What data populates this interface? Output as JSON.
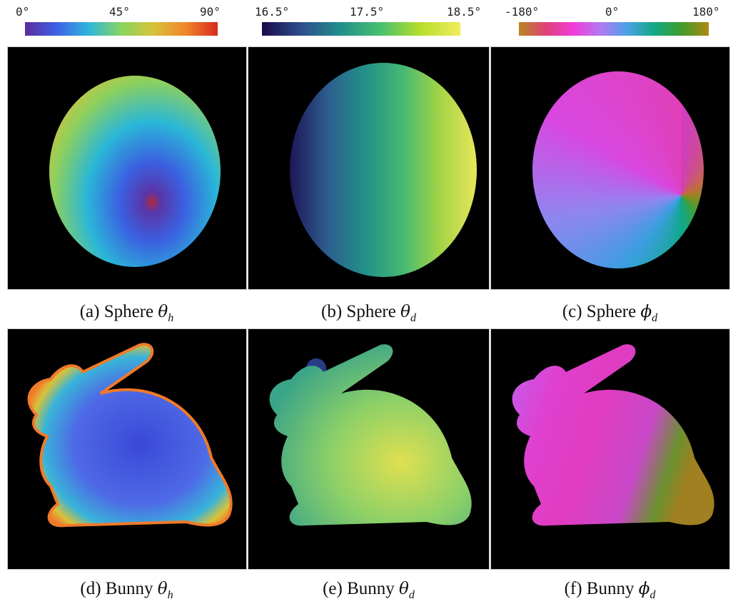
{
  "colorbars": [
    {
      "ticks": [
        "0°",
        "45°",
        "90°"
      ]
    },
    {
      "ticks": [
        "16.5°",
        "17.5°",
        "18.5°"
      ]
    },
    {
      "ticks": [
        "-180°",
        "0°",
        "180°"
      ]
    }
  ],
  "captions": [
    {
      "label": "(a) Sphere",
      "symbol": "θ",
      "sub": "h"
    },
    {
      "label": "(b) Sphere",
      "symbol": "θ",
      "sub": "d"
    },
    {
      "label": "(c) Sphere",
      "symbol": "ϕ",
      "sub": "d"
    },
    {
      "label": "(d) Bunny",
      "symbol": "θ",
      "sub": "h"
    },
    {
      "label": "(e) Bunny",
      "symbol": "θ",
      "sub": "d"
    },
    {
      "label": "(f) Bunny",
      "symbol": "ϕ",
      "sub": "d"
    }
  ]
}
